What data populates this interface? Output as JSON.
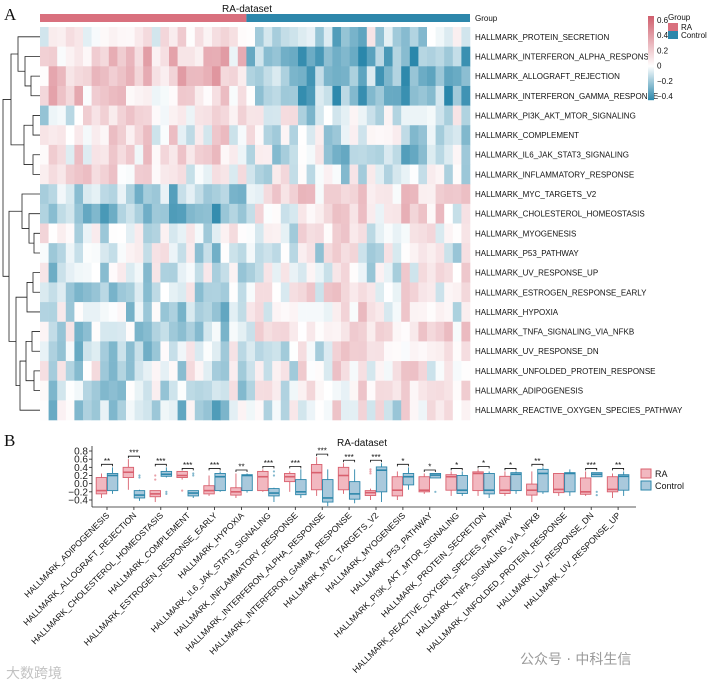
{
  "chart_data": [
    {
      "type": "heatmap",
      "panel_label": "A",
      "title": "RA-dataset",
      "groups": [
        {
          "name": "RA",
          "samples": 24,
          "color": "#d9707e"
        },
        {
          "name": "Control",
          "samples": 26,
          "color": "#2d87ab"
        }
      ],
      "group_legend_title": "Group",
      "group_track_label": "Group",
      "colorbar": {
        "ticks": [
          0.6,
          0.4,
          0.2,
          0,
          -0.2,
          -0.4
        ],
        "tick_labels": [
          "0.6",
          "0.4",
          "0.2",
          "0",
          "−0.2",
          "−0.4"
        ],
        "high_color": "#d0606e",
        "mid_color": "#ffffff",
        "low_color": "#2a87ab",
        "range": [
          -0.45,
          0.65
        ]
      },
      "rows": [
        {
          "name": "HALLMARK_PROTEIN_SECRETION",
          "ra_mean": 0.05,
          "control_mean": -0.15
        },
        {
          "name": "HALLMARK_INTERFERON_ALPHA_RESPONSE",
          "ra_mean": 0.2,
          "control_mean": -0.3
        },
        {
          "name": "HALLMARK_ALLOGRAFT_REJECTION",
          "ra_mean": 0.2,
          "control_mean": -0.25
        },
        {
          "name": "HALLMARK_INTERFERON_GAMMA_RESPONSE",
          "ra_mean": 0.15,
          "control_mean": -0.25
        },
        {
          "name": "HALLMARK_PI3K_AKT_MTOR_SIGNALING",
          "ra_mean": 0.05,
          "control_mean": -0.1
        },
        {
          "name": "HALLMARK_COMPLEMENT",
          "ra_mean": 0.08,
          "control_mean": -0.08
        },
        {
          "name": "HALLMARK_IL6_JAK_STAT3_SIGNALING",
          "ra_mean": 0.08,
          "control_mean": -0.12
        },
        {
          "name": "HALLMARK_INFLAMMATORY_RESPONSE",
          "ra_mean": 0.1,
          "control_mean": -0.05
        },
        {
          "name": "HALLMARK_MYC_TARGETS_V2",
          "ra_mean": -0.2,
          "control_mean": 0.15
        },
        {
          "name": "HALLMARK_CHOLESTEROL_HOMEOSTASIS",
          "ra_mean": -0.2,
          "control_mean": 0.1
        },
        {
          "name": "HALLMARK_MYOGENESIS",
          "ra_mean": -0.05,
          "control_mean": 0.05
        },
        {
          "name": "HALLMARK_P53_PATHWAY",
          "ra_mean": -0.05,
          "control_mean": 0.0
        },
        {
          "name": "HALLMARK_UV_RESPONSE_UP",
          "ra_mean": -0.08,
          "control_mean": 0.02
        },
        {
          "name": "HALLMARK_ESTROGEN_RESPONSE_EARLY",
          "ra_mean": -0.1,
          "control_mean": 0.05
        },
        {
          "name": "HALLMARK_HYPOXIA",
          "ra_mean": -0.1,
          "control_mean": 0.08
        },
        {
          "name": "HALLMARK_TNFA_SIGNALING_VIA_NFKB",
          "ra_mean": -0.1,
          "control_mean": 0.1
        },
        {
          "name": "HALLMARK_UV_RESPONSE_DN",
          "ra_mean": -0.1,
          "control_mean": 0.05
        },
        {
          "name": "HALLMARK_UNFOLDED_PROTEIN_RESPONSE",
          "ra_mean": -0.05,
          "control_mean": 0.05
        },
        {
          "name": "HALLMARK_ADIPOGENESIS",
          "ra_mean": -0.1,
          "control_mean": 0.05
        },
        {
          "name": "HALLMARK_REACTIVE_OXYGEN_SPECIES_PATHWAY",
          "ra_mean": -0.12,
          "control_mean": 0.02
        }
      ]
    },
    {
      "type": "box",
      "panel_label": "B",
      "title": "RA-dataset",
      "ylim": [
        -0.5,
        0.8
      ],
      "yticks": [
        0.8,
        0.6,
        0.4,
        0.2,
        0.0,
        -0.2,
        -0.4
      ],
      "ytick_labels": [
        "0.8",
        "0.6",
        "0.4",
        "0.2",
        "0.0",
        "−0.2",
        "−0.4"
      ],
      "legend": {
        "position": "right",
        "entries": [
          {
            "name": "RA",
            "fill": "#f2b8c0",
            "stroke": "#d9606e"
          },
          {
            "name": "Control",
            "fill": "#a9c9dc",
            "stroke": "#2d87ab"
          }
        ]
      },
      "categories": [
        {
          "name": "HALLMARK_ADIPOGENESIS",
          "sig": "**",
          "ra": [
            -0.35,
            -0.25,
            -0.17,
            0.15,
            0.25
          ],
          "control": [
            -0.25,
            -0.17,
            0.2,
            0.25,
            0.4
          ]
        },
        {
          "name": "HALLMARK_ALLOGRAFT_REJECTION",
          "sig": "***",
          "ra": [
            -0.15,
            0.15,
            0.28,
            0.4,
            0.6
          ],
          "control": [
            -0.42,
            -0.35,
            -0.28,
            -0.17,
            -0.15
          ],
          "control_outliers": [
            0.2,
            0.15
          ]
        },
        {
          "name": "HALLMARK_CHOLESTEROL_HOMEOSTASIS",
          "sig": "***",
          "ra": [
            -0.45,
            -0.32,
            -0.25,
            -0.17,
            -0.17
          ],
          "ra_outliers": [
            0.2,
            0.1
          ],
          "control": [
            0.15,
            0.18,
            0.23,
            0.3,
            0.4
          ],
          "control_outliers": [
            -0.2,
            -0.25
          ]
        },
        {
          "name": "HALLMARK_COMPLEMENT",
          "sig": "***",
          "ra": [
            0.1,
            0.15,
            0.2,
            0.3,
            0.3
          ],
          "ra_outliers": [
            -0.17
          ],
          "control": [
            -0.35,
            -0.3,
            -0.23,
            -0.17,
            -0.17
          ],
          "control_outliers": [
            0.25,
            0.2
          ]
        },
        {
          "name": "HALLMARK_ESTROGEN_RESPONSE_EARLY",
          "sig": "***",
          "ra": [
            -0.3,
            -0.25,
            -0.17,
            -0.05,
            0.2
          ],
          "control": [
            -0.2,
            -0.17,
            0.17,
            0.25,
            0.3
          ]
        },
        {
          "name": "HALLMARK_HYPOXIA",
          "sig": "**",
          "ra": [
            -0.35,
            -0.28,
            -0.2,
            -0.1,
            0.25
          ],
          "control": [
            -0.22,
            -0.17,
            0.2,
            0.22,
            0.25
          ]
        },
        {
          "name": "HALLMARK_IL6_JAK_STAT3_SIGNALING",
          "sig": "***",
          "ra": [
            -0.2,
            -0.17,
            0.17,
            0.3,
            0.35
          ],
          "control": [
            -0.45,
            -0.3,
            -0.23,
            -0.12,
            -0.1
          ],
          "control_outliers": [
            0.3,
            0.2
          ]
        },
        {
          "name": "HALLMARK_INFLAMMATORY_RESPONSE",
          "sig": "***",
          "ra": [
            -0.2,
            0.05,
            0.17,
            0.25,
            0.3
          ],
          "control": [
            -0.35,
            -0.27,
            -0.2,
            0.1,
            0.35
          ]
        },
        {
          "name": "HALLMARK_INTERFERON_ALPHA_RESPONSE",
          "sig": "***",
          "ra": [
            -0.3,
            -0.15,
            0.27,
            0.47,
            0.65
          ],
          "control": [
            -0.55,
            -0.45,
            -0.35,
            0.1,
            0.35
          ]
        },
        {
          "name": "HALLMARK_INTERFERON_GAMMA_RESPONSE",
          "sig": "***",
          "ra": [
            -0.25,
            -0.15,
            0.2,
            0.4,
            0.5
          ],
          "control": [
            -0.48,
            -0.38,
            -0.25,
            0.05,
            0.35
          ]
        },
        {
          "name": "HALLMARK_MYC_TARGETS_V2",
          "sig": "***",
          "ra": [
            -0.4,
            -0.29,
            -0.22,
            -0.17,
            -0.12
          ],
          "ra_outliers": [
            0.25,
            0.3,
            0.35
          ],
          "control": [
            -0.45,
            -0.2,
            0.33,
            0.41,
            0.5
          ]
        },
        {
          "name": "HALLMARK_MYOGENESIS",
          "sig": "*",
          "ra": [
            -0.4,
            -0.3,
            -0.16,
            0.17,
            0.3
          ],
          "control": [
            -0.15,
            -0.03,
            0.17,
            0.25,
            0.4
          ]
        },
        {
          "name": "HALLMARK_P53_PATHWAY",
          "sig": "*",
          "ra": [
            -0.25,
            -0.2,
            -0.16,
            0.17,
            0.25
          ],
          "control": [
            0.14,
            0.14,
            0.21,
            0.25,
            0.25
          ],
          "control_outliers": [
            -0.2
          ]
        },
        {
          "name": "HALLMARK_PI3K_AKT_MTOR_SIGNALING",
          "sig": "*",
          "ra": [
            -0.3,
            -0.16,
            0.17,
            0.22,
            0.3
          ],
          "control": [
            -0.3,
            -0.24,
            -0.16,
            0.2,
            0.3
          ]
        },
        {
          "name": "HALLMARK_PROTEIN_SECRETION",
          "sig": "*",
          "ra": [
            -0.3,
            -0.17,
            0.25,
            0.29,
            0.35
          ],
          "control": [
            -0.35,
            -0.25,
            -0.16,
            0.25,
            0.3
          ]
        },
        {
          "name": "HALLMARK_REACTIVE_OXYGEN_SPECIES_PATHWAY",
          "sig": "*",
          "ra": [
            -0.3,
            -0.24,
            -0.16,
            0.18,
            0.3
          ],
          "control": [
            -0.25,
            -0.17,
            0.23,
            0.27,
            0.3
          ]
        },
        {
          "name": "HALLMARK_TNFA_SIGNALING_VIA_NFKB",
          "sig": "**",
          "ra": [
            -0.45,
            -0.28,
            -0.16,
            -0.01,
            0.3
          ],
          "control": [
            -0.25,
            -0.2,
            0.25,
            0.35,
            0.4
          ]
        },
        {
          "name": "HALLMARK_UNFOLDED_PROTEIN_RESPONSE",
          "sig": "",
          "ra": [
            -0.3,
            -0.22,
            -0.14,
            0.25,
            0.25
          ],
          "control": [
            -0.3,
            -0.2,
            0.25,
            0.27,
            0.35
          ]
        },
        {
          "name": "HALLMARK_UV_RESPONSE_DN",
          "sig": "***",
          "ra": [
            -0.3,
            -0.26,
            -0.2,
            0.14,
            0.3
          ],
          "control": [
            0.17,
            0.17,
            0.23,
            0.27,
            0.27
          ],
          "control_outliers": [
            -0.2,
            -0.28
          ]
        },
        {
          "name": "HALLMARK_UV_RESPONSE_UP",
          "sig": "**",
          "ra": [
            -0.35,
            -0.2,
            -0.14,
            0.17,
            0.25
          ],
          "control": [
            -0.3,
            -0.16,
            0.18,
            0.22,
            0.3
          ]
        }
      ]
    }
  ],
  "watermarks": {
    "left": "大数跨境",
    "right": "公众号 · 中科生信"
  }
}
